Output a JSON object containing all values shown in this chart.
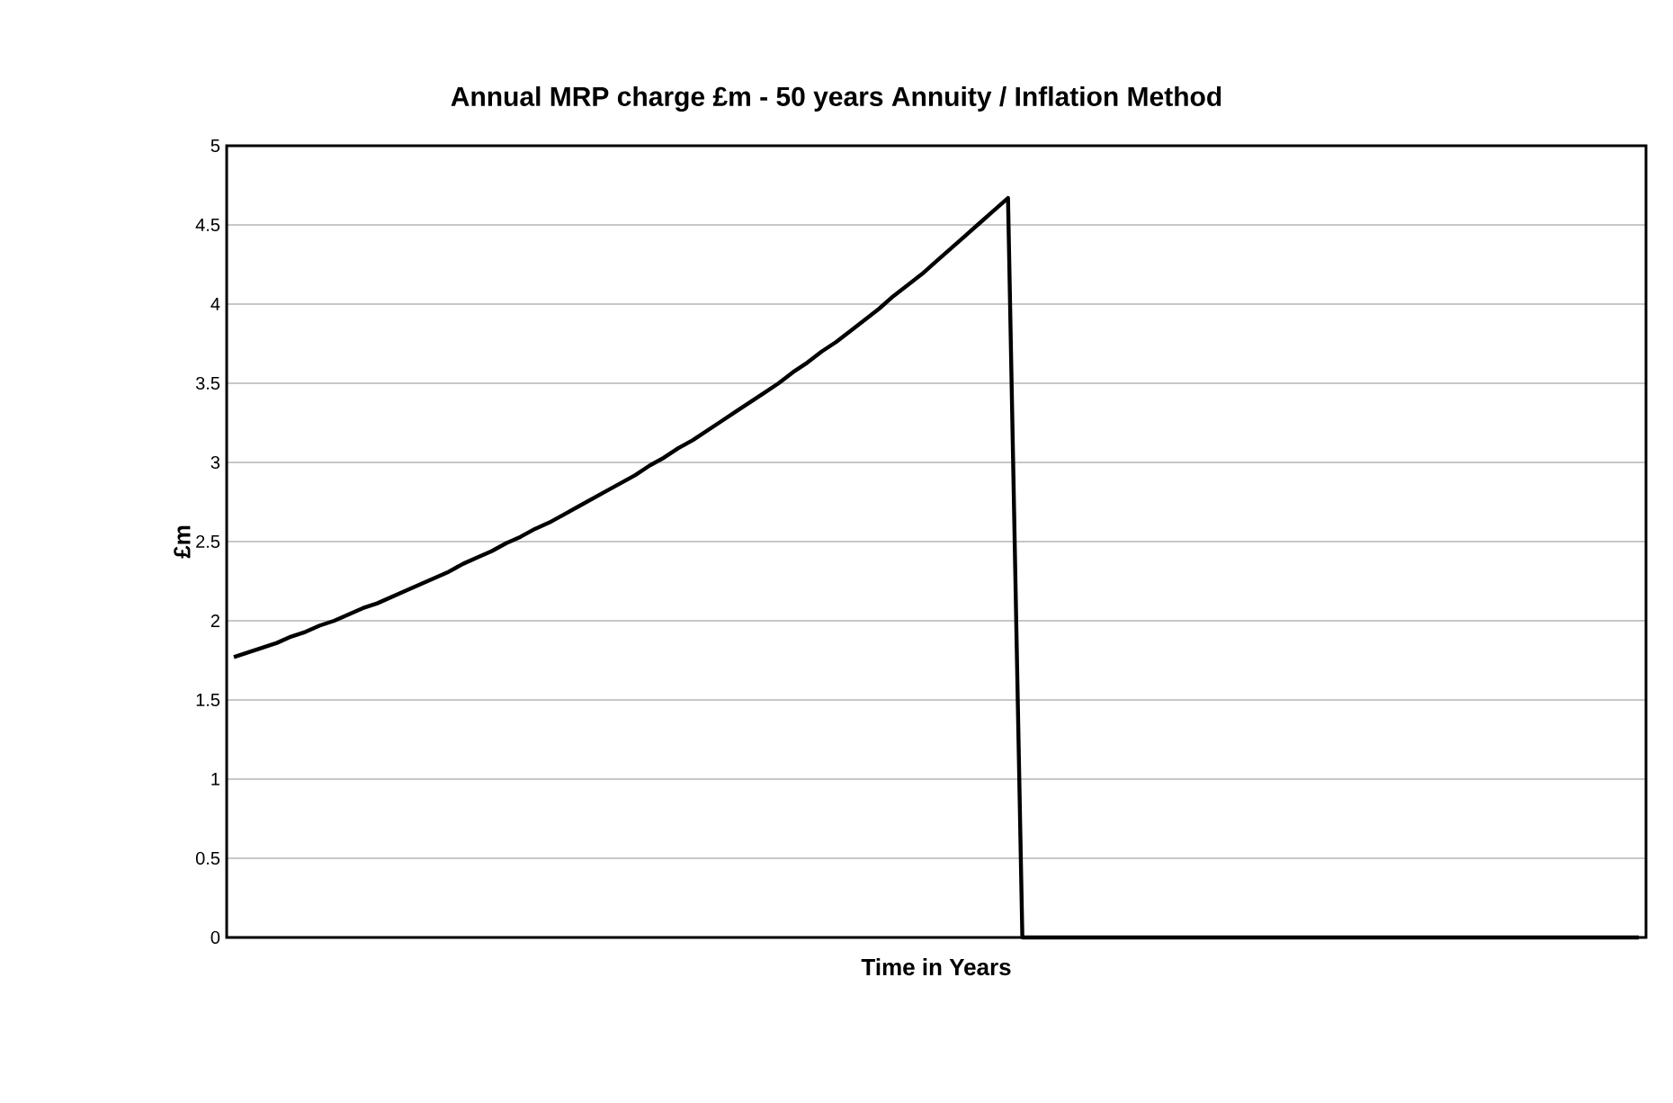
{
  "chart_data": {
    "type": "line",
    "title": "Annual MRP charge £m - 50 years Annuity / Inflation Method",
    "xlabel": "Time in Years",
    "ylabel": "£m",
    "categories": [
      null,
      null,
      null,
      null,
      null,
      null,
      null,
      null,
      null,
      null,
      null,
      null,
      null,
      null,
      null,
      null,
      null,
      null,
      null,
      null,
      null,
      null,
      null,
      null,
      null,
      null,
      null,
      null,
      null,
      null,
      null,
      null,
      null,
      null,
      null,
      null,
      null,
      null,
      null,
      null,
      null,
      null,
      null,
      null,
      null,
      null,
      null,
      null,
      null,
      null,
      null,
      null,
      null,
      null,
      null,
      null,
      null,
      null,
      null,
      null,
      null,
      null,
      null,
      null,
      null,
      null,
      null,
      null,
      null,
      null,
      null,
      null,
      null,
      null,
      null,
      null,
      null,
      null,
      null,
      null,
      null,
      null,
      null,
      null,
      null,
      null,
      null,
      null,
      null,
      null,
      null,
      null,
      null,
      null,
      null,
      null,
      null,
      null,
      null
    ],
    "series": [
      {
        "color": "#000000",
        "values": [
          1.77,
          1.8,
          1.83,
          1.86,
          1.9,
          1.93,
          1.97,
          2.0,
          2.04,
          2.08,
          2.11,
          2.15,
          2.19,
          2.23,
          2.27,
          2.31,
          2.36,
          2.4,
          2.44,
          2.49,
          2.53,
          2.58,
          2.62,
          2.67,
          2.72,
          2.77,
          2.82,
          2.87,
          2.92,
          2.98,
          3.03,
          3.09,
          3.14,
          3.2,
          3.26,
          3.32,
          3.38,
          3.44,
          3.5,
          3.57,
          3.63,
          3.7,
          3.76,
          3.83,
          3.9,
          3.97,
          4.05,
          4.12,
          4.19,
          4.27,
          4.35,
          4.43,
          4.51,
          4.59,
          4.67,
          0,
          0,
          0,
          0,
          0,
          0,
          0,
          0,
          0,
          0,
          0,
          0,
          0,
          0,
          0,
          0,
          0,
          0,
          0,
          0,
          0,
          0,
          0,
          0,
          0,
          0,
          0,
          0,
          0,
          0,
          0,
          0,
          0,
          0,
          0,
          0,
          0,
          0,
          0,
          0,
          0,
          0,
          0,
          0
        ]
      }
    ],
    "ylim": [
      0,
      5
    ],
    "yticks": [
      0,
      0.5,
      1,
      1.5,
      2,
      2.5,
      3,
      3.5,
      4,
      4.5,
      5
    ],
    "grid": "y"
  }
}
